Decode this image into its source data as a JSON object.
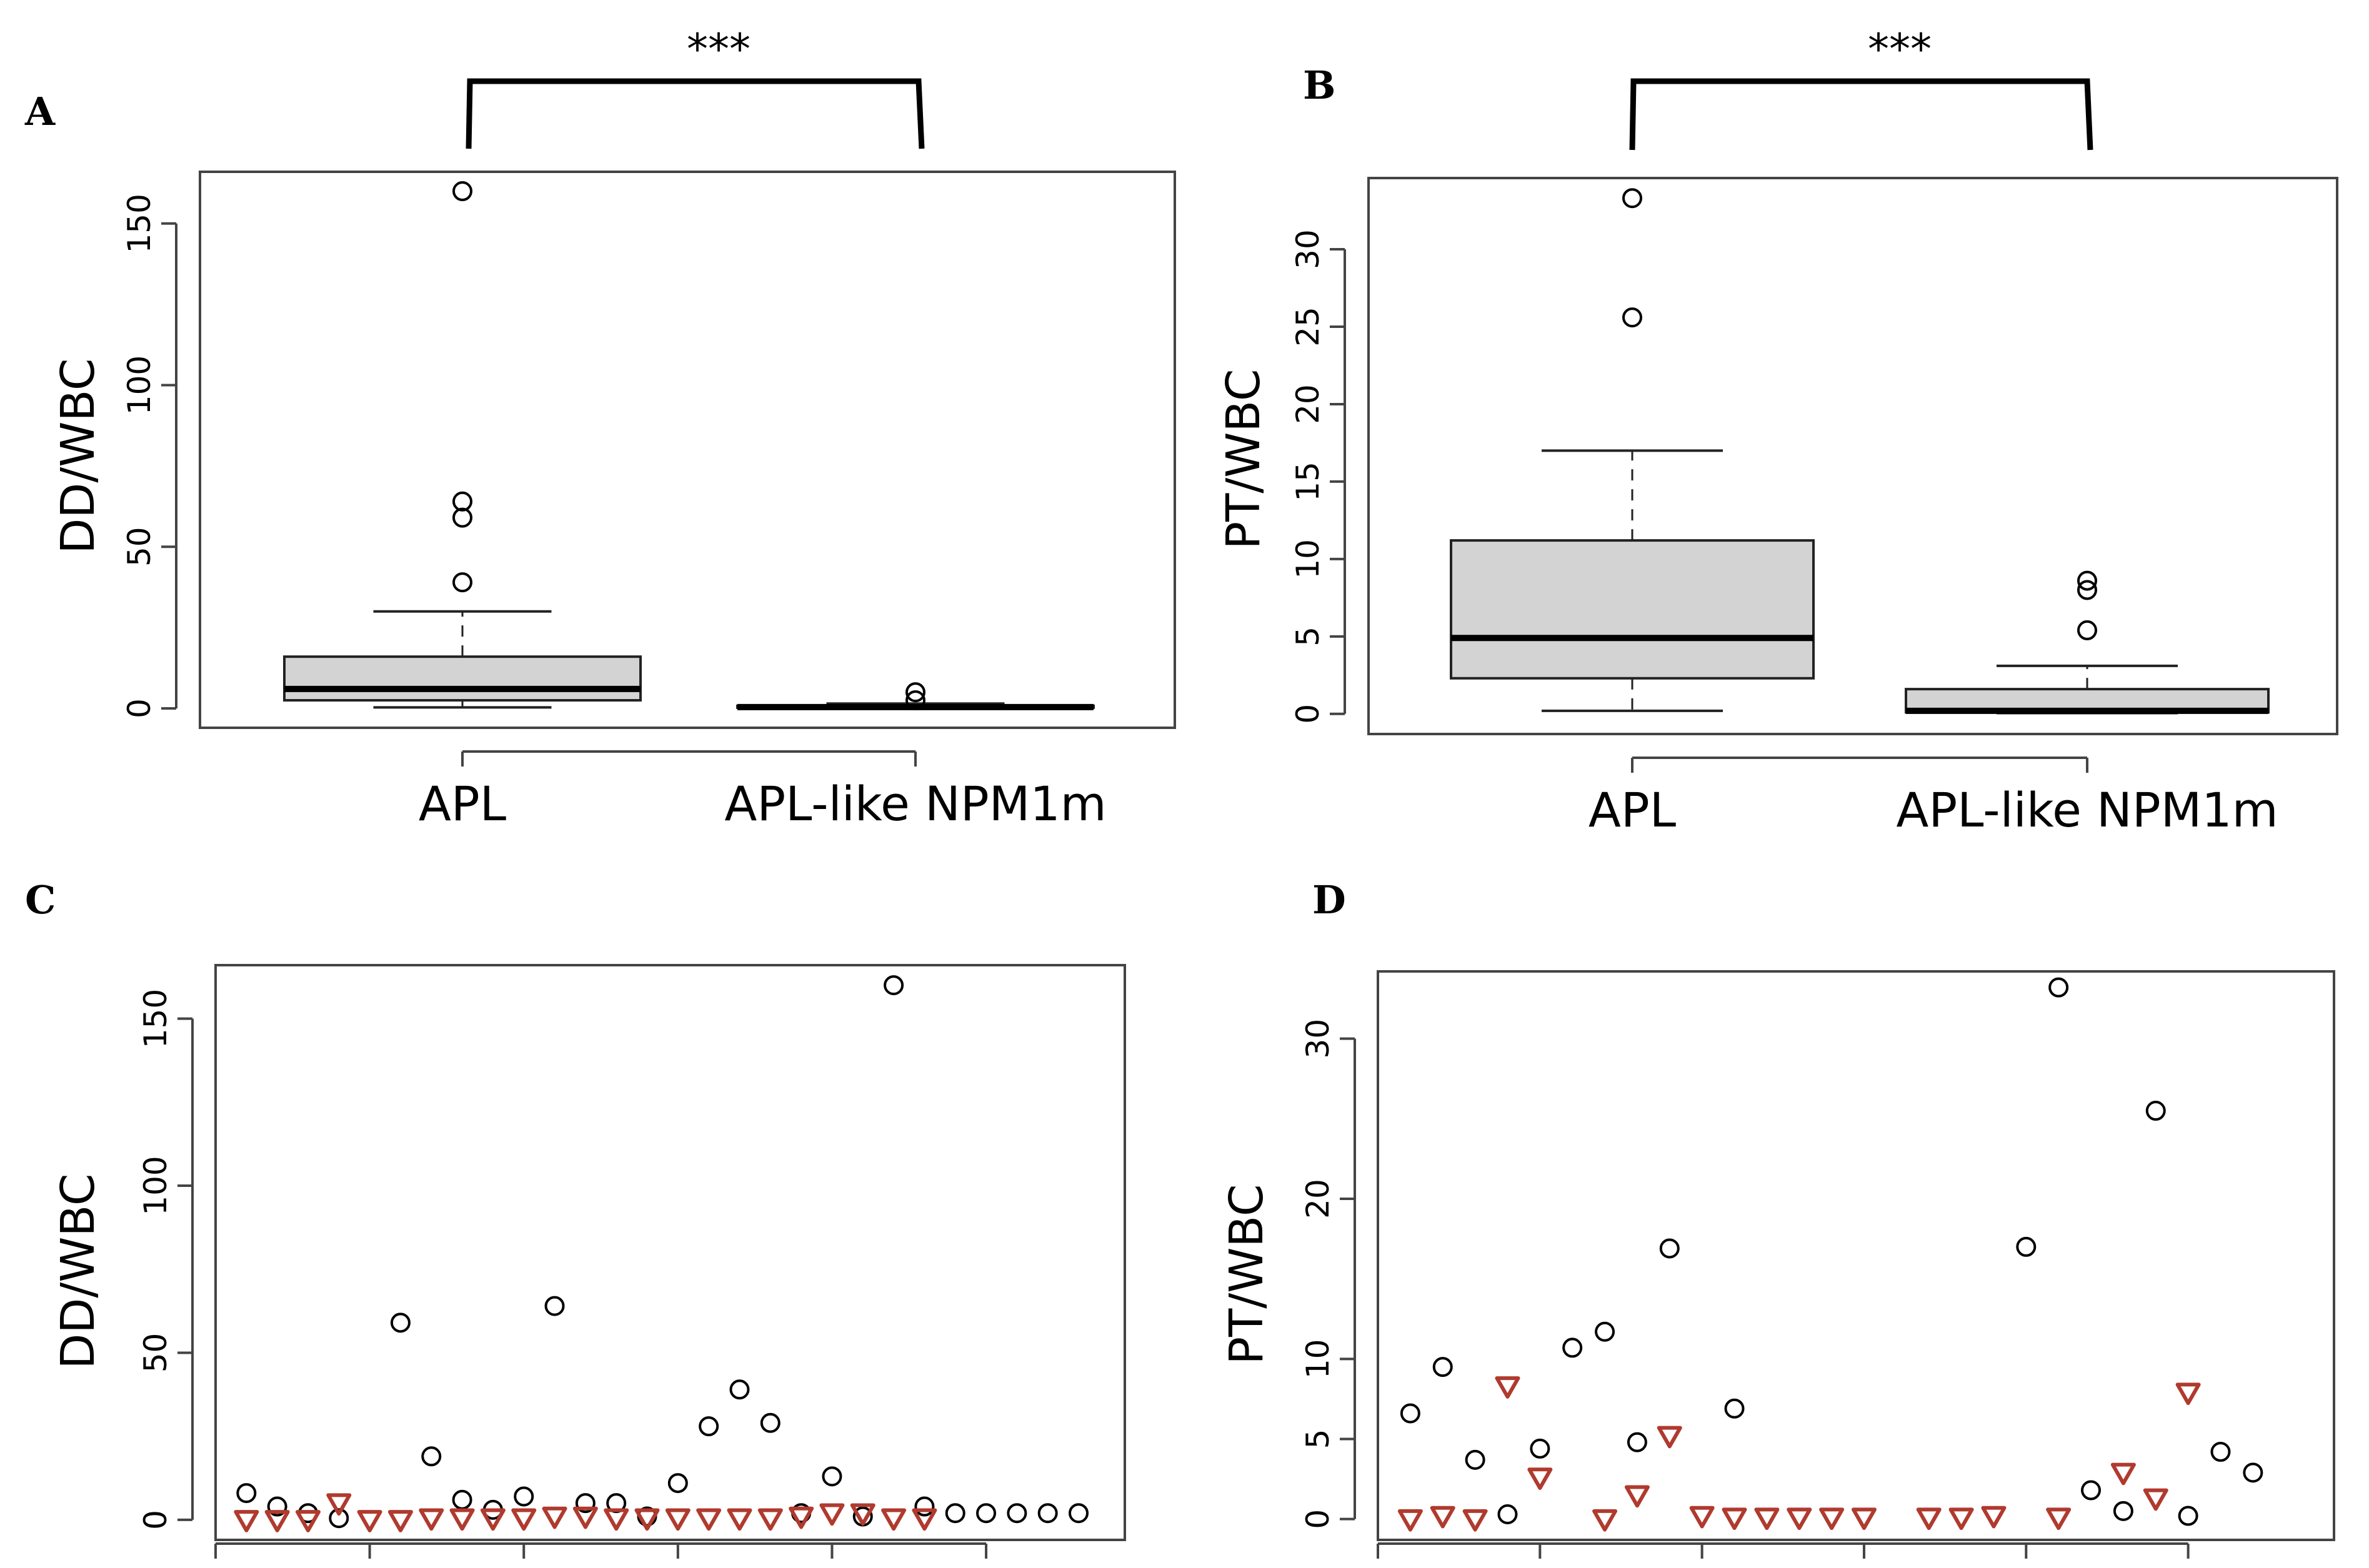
{
  "chart_data": [
    {
      "panel": "A",
      "type": "box",
      "significance": "***",
      "ylabel": "DD/WBC",
      "categories": [
        "APL",
        "APL-like NPM1m"
      ],
      "yticks": [
        0,
        50,
        100,
        150
      ],
      "ylim": [
        -6,
        166
      ],
      "boxes": [
        {
          "min": 0.3,
          "q1": 2.5,
          "median": 6,
          "q3": 16,
          "max": 30,
          "outliers": [
            39,
            59,
            64,
            160
          ]
        },
        {
          "min": 0.05,
          "q1": 0.2,
          "median": 0.4,
          "q3": 0.8,
          "max": 1.5,
          "outliers": [
            2.5,
            5
          ]
        }
      ]
    },
    {
      "panel": "B",
      "type": "box",
      "significance": "***",
      "ylabel": "PT/WBC",
      "categories": [
        "APL",
        "APL-like NPM1m"
      ],
      "yticks": [
        0,
        5,
        10,
        15,
        20,
        25,
        30
      ],
      "ylim": [
        -1.3,
        34.6
      ],
      "boxes": [
        {
          "min": 0.2,
          "q1": 2.3,
          "median": 4.9,
          "q3": 11.2,
          "max": 17,
          "outliers": [
            25.6,
            33.3
          ]
        },
        {
          "min": 0.05,
          "q1": 0.1,
          "median": 0.2,
          "q3": 1.6,
          "max": 3.1,
          "outliers": [
            5.4,
            8,
            8.6
          ]
        }
      ]
    },
    {
      "panel": "C",
      "type": "scatter",
      "ylabel": "DD/WBC",
      "yticks": [
        0,
        50,
        100,
        150
      ],
      "xlim": [
        0,
        29.5
      ],
      "ylim": [
        -6,
        166
      ],
      "series": [
        {
          "marker": "circle",
          "color": "#000000",
          "x": [
            1,
            2,
            3,
            4,
            6,
            7,
            8,
            9,
            10,
            11,
            12,
            13,
            14,
            15,
            16,
            17,
            18,
            19,
            20,
            21,
            22,
            23,
            24,
            25,
            26,
            27,
            28
          ],
          "y": [
            8,
            4,
            2,
            0.5,
            59,
            19,
            6,
            3,
            7,
            64,
            5,
            5,
            1,
            11,
            28,
            39,
            29,
            2,
            13,
            1,
            160,
            4,
            2,
            2,
            2,
            2,
            2
          ]
        },
        {
          "marker": "triangle",
          "color": "#b03a2e",
          "x": [
            1,
            2,
            3,
            4,
            5,
            6,
            7,
            8,
            9,
            10,
            11,
            12,
            13,
            14,
            15,
            16,
            17,
            18,
            19,
            20,
            21,
            22,
            23
          ],
          "y": [
            0,
            0,
            0,
            5,
            0,
            0,
            0.5,
            0.5,
            0.5,
            0.5,
            1,
            1,
            0.5,
            0.5,
            0.5,
            0.5,
            0.5,
            0.5,
            1,
            2,
            2,
            0.5,
            0.5
          ]
        }
      ]
    },
    {
      "panel": "D",
      "type": "scatter",
      "ylabel": "PT/WBC",
      "yticks": [
        0,
        5,
        10,
        20,
        30
      ],
      "xlim": [
        0,
        29.5
      ],
      "ylim": [
        -1.3,
        34.2
      ],
      "series": [
        {
          "marker": "circle",
          "color": "#000000",
          "x": [
            1,
            2,
            3,
            4,
            5,
            6,
            7,
            8,
            9,
            11,
            20,
            21,
            22,
            23,
            24,
            25,
            26,
            27
          ],
          "y": [
            6.6,
            9.5,
            3.7,
            0.3,
            4.4,
            10.7,
            11.7,
            4.8,
            16.9,
            6.9,
            17,
            33.2,
            1.8,
            0.5,
            25.5,
            0.2,
            4.2,
            2.9
          ]
        },
        {
          "marker": "triangle",
          "color": "#b03a2e",
          "x": [
            1,
            2,
            3,
            4,
            5,
            7,
            8,
            9,
            10,
            11,
            12,
            13,
            14,
            15,
            17,
            18,
            19,
            21,
            23,
            24,
            25
          ],
          "y": [
            0,
            0.2,
            0,
            8.3,
            2.6,
            0,
            1.5,
            5.2,
            0.2,
            0.1,
            0.1,
            0.1,
            0.1,
            0.1,
            0.1,
            0.1,
            0.2,
            0.1,
            2.9,
            1.3,
            7.9
          ]
        }
      ]
    }
  ]
}
